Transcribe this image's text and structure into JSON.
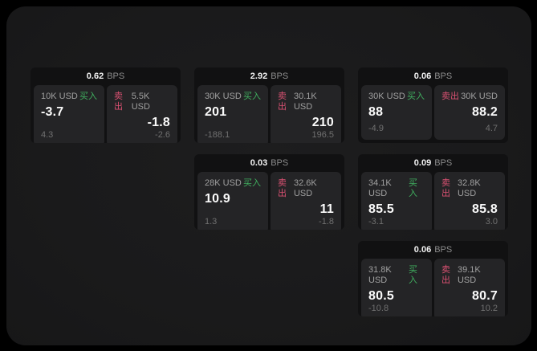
{
  "colors": {
    "canvas_bg": "#000000",
    "page_bg": "#1a1a1b",
    "card_bg": "#111112",
    "panel_bg": "#242426",
    "buy_green": "#40b05f",
    "sell_red": "#da5172",
    "value_white": "#fafafa",
    "label_gray": "#a0a0a0",
    "delta_gray": "#707070"
  },
  "bps_unit_label": "BPS",
  "cards": [
    {
      "position": "row1-col1",
      "bps": "0.62",
      "bps_unit": "BPS",
      "buy": {
        "amount": "10K USD",
        "label": "买入",
        "price": "-3.7",
        "delta": "4.3"
      },
      "sell": {
        "label": "卖出",
        "amount": "5.5K USD",
        "price": "-1.8",
        "delta": "-2.6"
      }
    },
    {
      "position": "row1-col2",
      "bps": "2.92",
      "bps_unit": "BPS",
      "buy": {
        "amount": "30K USD",
        "label": "买入",
        "price": "201",
        "delta": "-188.1"
      },
      "sell": {
        "label": "卖出",
        "amount": "30.1K USD",
        "price": "210",
        "delta": "196.5"
      }
    },
    {
      "position": "row1-col3",
      "bps": "0.06",
      "bps_unit": "BPS",
      "buy": {
        "amount": "30K USD",
        "label": "买入",
        "price": "88",
        "delta": "-4.9"
      },
      "sell": {
        "label": "卖出",
        "amount": "30K USD",
        "price": "88.2",
        "delta": "4.7"
      }
    },
    {
      "position": "row2-col2",
      "bps": "0.03",
      "bps_unit": "BPS",
      "buy": {
        "amount": "28K USD",
        "label": "买入",
        "price": "10.9",
        "delta": "1.3"
      },
      "sell": {
        "label": "卖出",
        "amount": "32.6K USD",
        "price": "11",
        "delta": "-1.8"
      }
    },
    {
      "position": "row2-col3",
      "bps": "0.09",
      "bps_unit": "BPS",
      "buy": {
        "amount": "34.1K USD",
        "label": "买入",
        "price": "85.5",
        "delta": "-3.1"
      },
      "sell": {
        "label": "卖出",
        "amount": "32.8K USD",
        "price": "85.8",
        "delta": "3.0"
      }
    },
    {
      "position": "row3-col3",
      "bps": "0.06",
      "bps_unit": "BPS",
      "buy": {
        "amount": "31.8K USD",
        "label": "买入",
        "price": "80.5",
        "delta": "-10.8"
      },
      "sell": {
        "label": "卖出",
        "amount": "39.1K USD",
        "price": "80.7",
        "delta": "10.2"
      }
    }
  ]
}
